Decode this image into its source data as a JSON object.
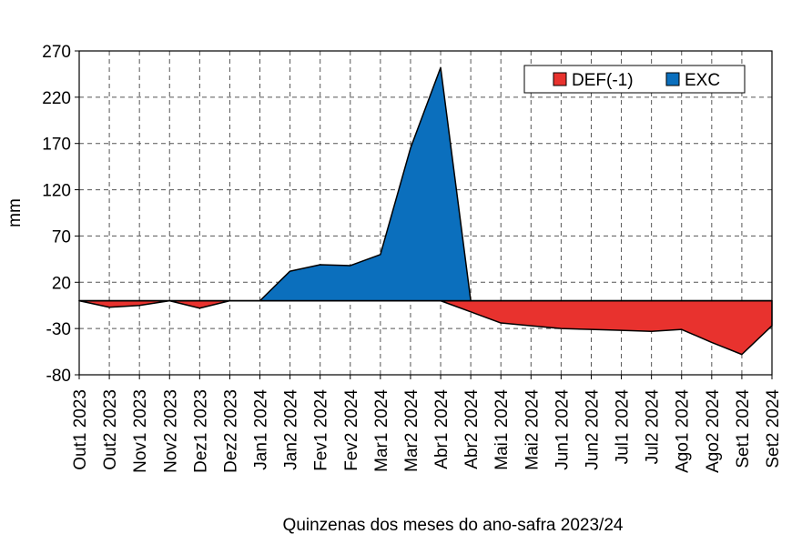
{
  "chart_data": {
    "type": "area",
    "xlabel": "Quinzenas dos meses do ano-safra 2023/24",
    "ylabel": "mm",
    "ylim": [
      -80,
      270
    ],
    "yticks": [
      270,
      220,
      170,
      120,
      70,
      20,
      -30,
      -80
    ],
    "grid": true,
    "legend_position": "top-right",
    "categories": [
      "Out1 2023",
      "Out2 2023",
      "Nov1 2023",
      "Nov2 2023",
      "Dez1 2023",
      "Dez2 2023",
      "Jan1 2024",
      "Jan2 2024",
      "Fev1 2024",
      "Fev2 2024",
      "Mar1 2024",
      "Mar2 2024",
      "Abr1 2024",
      "Abr2 2024",
      "Mai1 2024",
      "Mai2 2024",
      "Jun1 2024",
      "Jun2 2024",
      "Jul1 2024",
      "Jul2 2024",
      "Ago1 2024",
      "Ago2 2024",
      "Set1 2024",
      "Set2 2024"
    ],
    "series": [
      {
        "name": "DEF(-1)",
        "color": "#e8322e",
        "values": [
          0,
          -7,
          -5,
          0,
          -8,
          0,
          0,
          0,
          0,
          0,
          0,
          0,
          0,
          -12,
          -24,
          -27,
          -30,
          -31,
          -32,
          -33,
          -31,
          -45,
          -58,
          -27
        ]
      },
      {
        "name": "EXC",
        "color": "#0b6fbd",
        "values": [
          0,
          0,
          0,
          0,
          0,
          0,
          0,
          32,
          39,
          38,
          50,
          165,
          252,
          0,
          0,
          0,
          0,
          0,
          0,
          0,
          0,
          0,
          0,
          0
        ]
      }
    ]
  }
}
